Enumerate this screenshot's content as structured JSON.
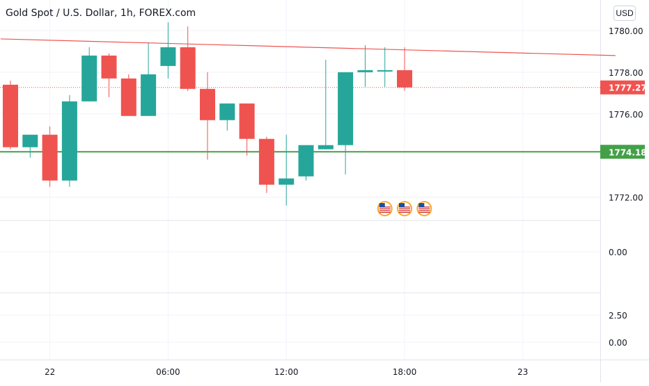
{
  "header": {
    "title": "Gold Spot / U.S. Dollar, 1h, FOREX.com",
    "currency": "USD"
  },
  "price_axis": {
    "ticks": [
      "1780.00",
      "1778.00",
      "1776.00",
      "1772.00"
    ],
    "tick_values": [
      1780,
      1778,
      1776,
      1772
    ]
  },
  "pane2_axis": {
    "ticks": [
      "0.00"
    ]
  },
  "pane3_axis": {
    "ticks": [
      "2.50",
      "0.00"
    ]
  },
  "time_axis": {
    "labels": [
      "22",
      "06:00",
      "12:00",
      "18:00",
      "23"
    ],
    "label_bar_index": [
      2,
      8,
      14,
      20,
      26
    ]
  },
  "colors": {
    "up": "#26a69a",
    "down": "#ef5350",
    "trendline": "#ef5350",
    "support_line": "#43a047",
    "grid": "#f0f3fa",
    "axis_text": "#131722"
  },
  "chart_data": {
    "type": "candlestick",
    "title": "Gold Spot / U.S. Dollar, 1h, FOREX.com",
    "currency": "USD",
    "ylim": [
      1771.0,
      1781.0
    ],
    "candles": [
      {
        "o": 1777.4,
        "h": 1777.6,
        "l": 1774.3,
        "c": 1774.4
      },
      {
        "o": 1774.4,
        "h": 1775.0,
        "l": 1773.9,
        "c": 1775.0
      },
      {
        "o": 1775.0,
        "h": 1775.4,
        "l": 1772.5,
        "c": 1772.8
      },
      {
        "o": 1772.8,
        "h": 1776.9,
        "l": 1772.5,
        "c": 1776.6
      },
      {
        "o": 1776.6,
        "h": 1779.2,
        "l": 1776.6,
        "c": 1778.8
      },
      {
        "o": 1778.8,
        "h": 1778.9,
        "l": 1776.8,
        "c": 1777.7
      },
      {
        "o": 1777.7,
        "h": 1777.9,
        "l": 1775.9,
        "c": 1775.9
      },
      {
        "o": 1775.9,
        "h": 1779.4,
        "l": 1775.9,
        "c": 1777.9
      },
      {
        "o": 1778.3,
        "h": 1780.4,
        "l": 1777.7,
        "c": 1779.2
      },
      {
        "o": 1779.2,
        "h": 1780.2,
        "l": 1777.1,
        "c": 1777.2
      },
      {
        "o": 1777.2,
        "h": 1778.0,
        "l": 1773.8,
        "c": 1775.7
      },
      {
        "o": 1775.7,
        "h": 1776.5,
        "l": 1775.2,
        "c": 1776.5
      },
      {
        "o": 1776.5,
        "h": 1776.5,
        "l": 1774.0,
        "c": 1774.8
      },
      {
        "o": 1774.8,
        "h": 1774.9,
        "l": 1772.2,
        "c": 1772.6
      },
      {
        "o": 1772.6,
        "h": 1775.0,
        "l": 1771.6,
        "c": 1772.9
      },
      {
        "o": 1773.0,
        "h": 1774.5,
        "l": 1772.8,
        "c": 1774.5
      },
      {
        "o": 1774.3,
        "h": 1778.6,
        "l": 1774.3,
        "c": 1774.5
      },
      {
        "o": 1774.5,
        "h": 1778.0,
        "l": 1773.1,
        "c": 1778.0
      },
      {
        "o": 1778.0,
        "h": 1779.3,
        "l": 1777.3,
        "c": 1778.1
      },
      {
        "o": 1778.1,
        "h": 1779.2,
        "l": 1777.3,
        "c": 1778.1
      },
      {
        "o": 1778.1,
        "h": 1779.2,
        "l": 1777.1,
        "c": 1777.27
      }
    ],
    "trendline": {
      "from": {
        "bar": -0.5,
        "price": 1779.6
      },
      "to": {
        "bar": 30.7,
        "price": 1778.8
      }
    },
    "horizontal_lines": [
      {
        "price": 1774.18,
        "label": "1774.18",
        "color": "#43a047"
      }
    ],
    "last_price": {
      "price": 1777.27,
      "label": "1777.27",
      "color": "#ef5350"
    },
    "event_markers": [
      {
        "bar": 19,
        "flag": "US"
      },
      {
        "bar": 20,
        "flag": "US"
      },
      {
        "bar": 21,
        "flag": "US"
      }
    ]
  }
}
